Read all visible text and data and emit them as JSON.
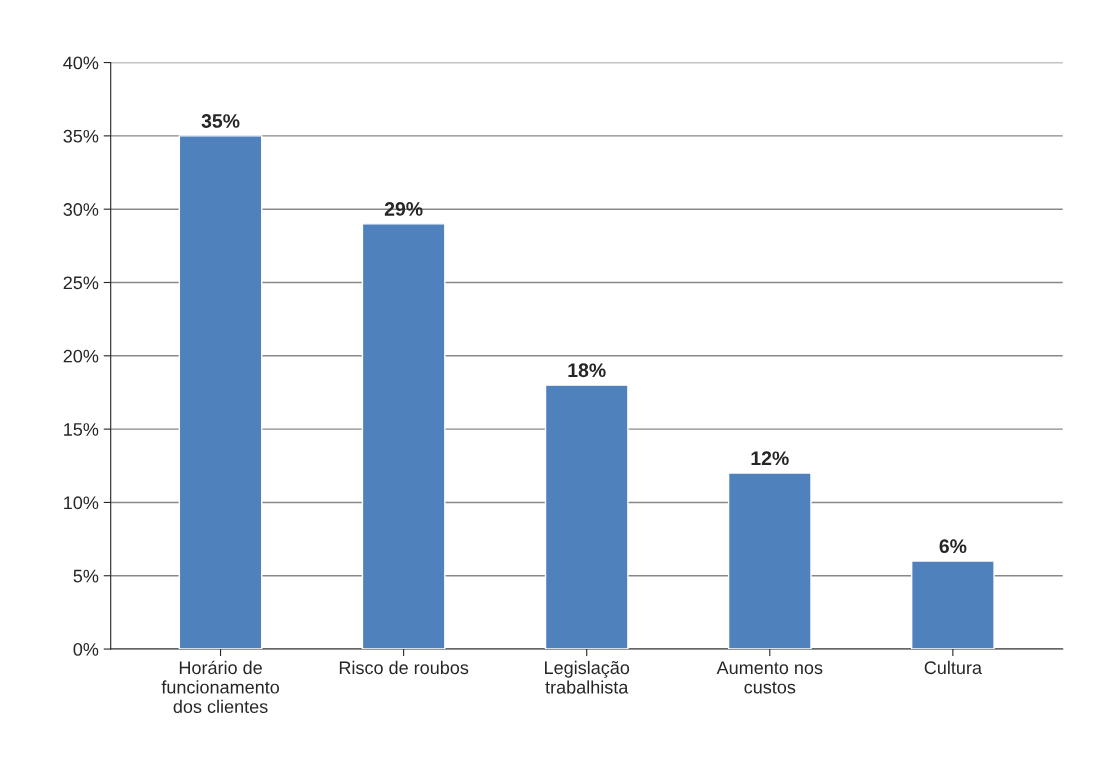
{
  "chart_data": {
    "type": "bar",
    "categories": [
      "Horário de\nfuncionamento\ndos clientes",
      "Risco de roubos",
      "Legislação\ntrabalhista",
      "Aumento nos\ncustos",
      "Cultura"
    ],
    "values": [
      35,
      29,
      18,
      12,
      6
    ],
    "value_labels": [
      "35%",
      "29%",
      "18%",
      "12%",
      "6%"
    ],
    "color": "#4f81bd",
    "ylim": [
      0,
      40
    ],
    "yticks": [
      {
        "value": 0,
        "label": "0%"
      },
      {
        "value": 5,
        "label": "5%"
      },
      {
        "value": 10,
        "label": "10%"
      },
      {
        "value": 15,
        "label": "15%"
      },
      {
        "value": 20,
        "label": "20%"
      },
      {
        "value": 25,
        "label": "25%"
      },
      {
        "value": 30,
        "label": "30%"
      },
      {
        "value": 35,
        "label": "35%"
      },
      {
        "value": 40,
        "label": "40%"
      }
    ],
    "grid": "y"
  }
}
